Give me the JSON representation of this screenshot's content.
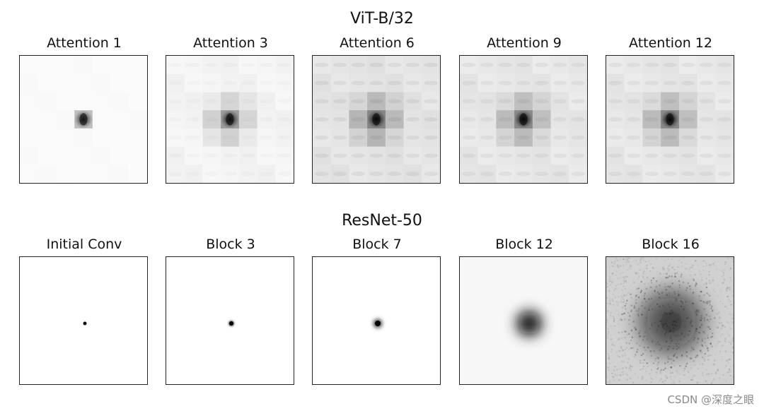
{
  "figure": {
    "vit": {
      "title": "ViT-B/32",
      "panels": [
        {
          "label": "Attention 1",
          "kind": "vit",
          "layer": 1
        },
        {
          "label": "Attention 3",
          "kind": "vit",
          "layer": 3
        },
        {
          "label": "Attention 6",
          "kind": "vit",
          "layer": 6
        },
        {
          "label": "Attention 9",
          "kind": "vit",
          "layer": 9
        },
        {
          "label": "Attention 12",
          "kind": "vit",
          "layer": 12
        }
      ]
    },
    "resnet": {
      "title": "ResNet-50",
      "panels": [
        {
          "label": "Initial Conv",
          "kind": "resnet",
          "stage": "initial"
        },
        {
          "label": "Block 3",
          "kind": "resnet",
          "stage": "block3"
        },
        {
          "label": "Block 7",
          "kind": "resnet",
          "stage": "block7"
        },
        {
          "label": "Block 12",
          "kind": "resnet",
          "stage": "block12"
        },
        {
          "label": "Block 16",
          "kind": "resnet",
          "stage": "block16"
        }
      ]
    }
  },
  "watermark": "CSDN @深度之眼"
}
